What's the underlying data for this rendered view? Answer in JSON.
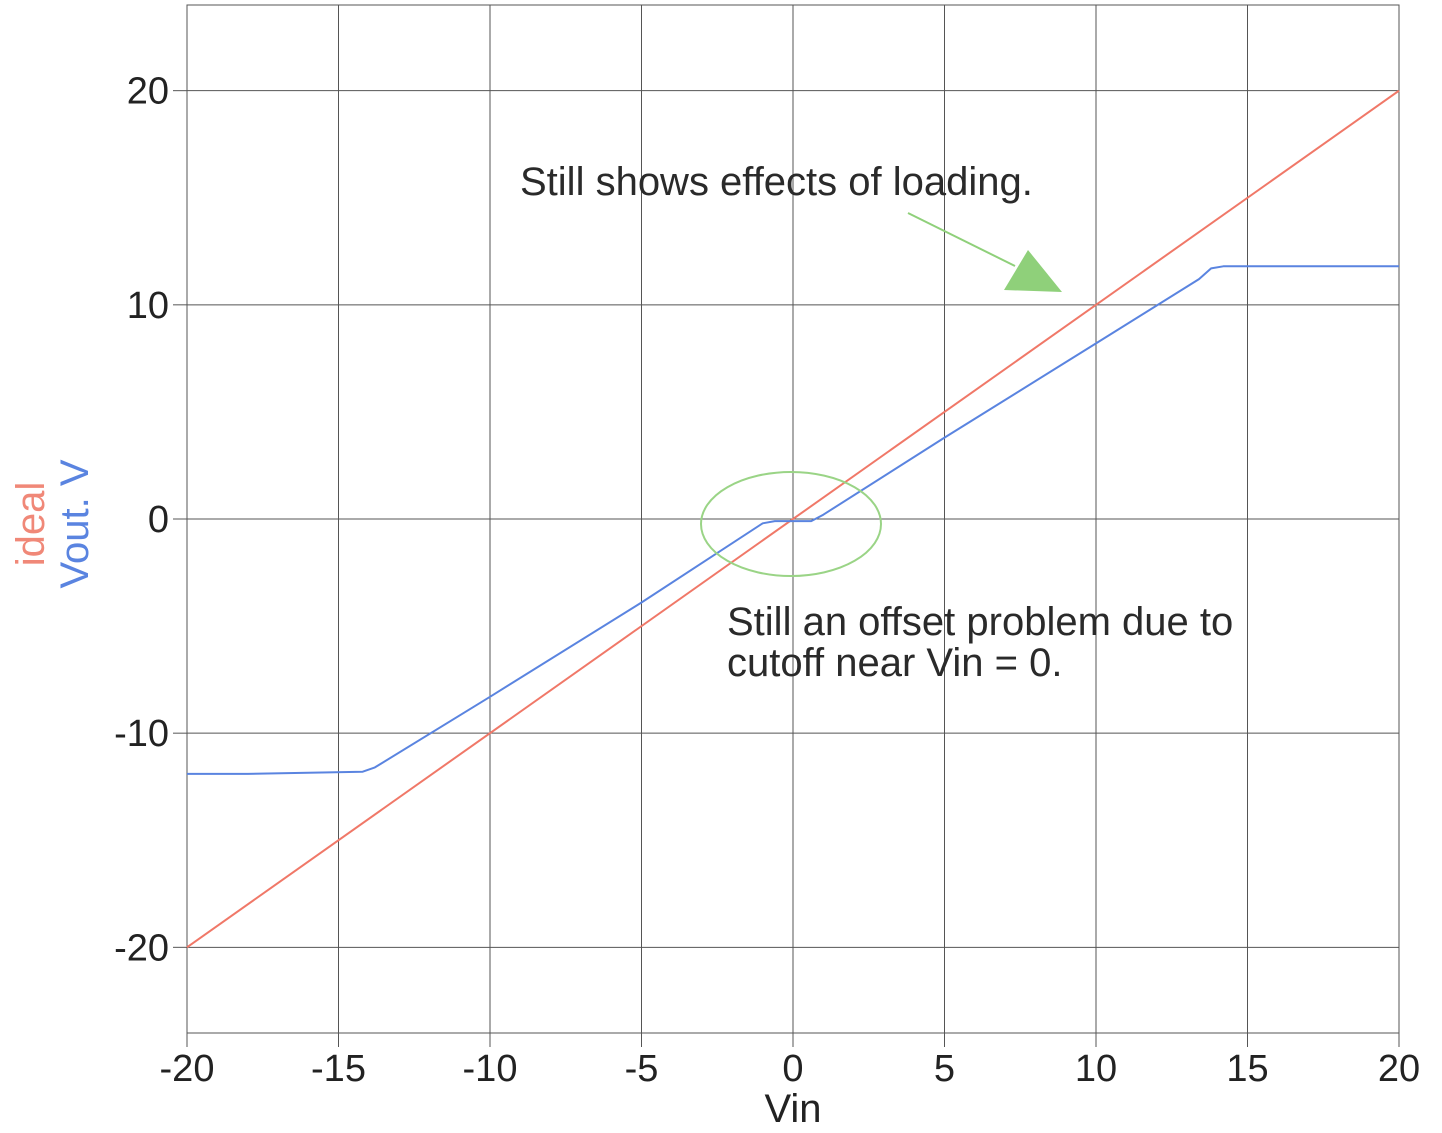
{
  "chart_data": {
    "type": "line",
    "xlabel": "Vin",
    "ylabels": [
      {
        "text": "ideal",
        "color": "#f08878"
      },
      {
        "text": "Vout. V",
        "color": "#5a84e0"
      }
    ],
    "xlim": [
      -20,
      20
    ],
    "ylim": [
      -24,
      24
    ],
    "x_ticks": [
      -20,
      -15,
      -10,
      -5,
      0,
      5,
      10,
      15,
      20
    ],
    "x_tick_labels": [
      "-20",
      "-15",
      "-10",
      "-5",
      "0",
      "5",
      "10",
      "15",
      "20"
    ],
    "y_ticks": [
      -20,
      -10,
      0,
      10,
      20
    ],
    "y_tick_labels": [
      "-20",
      "-10",
      "0",
      "10",
      "20"
    ],
    "grid": true,
    "series": [
      {
        "name": "ideal",
        "color": "#f07868",
        "x": [
          -20,
          20
        ],
        "y": [
          -20,
          20
        ]
      },
      {
        "name": "Vout. V",
        "color": "#5a84e0",
        "x": [
          -20,
          -18,
          -14.2,
          -13.8,
          -10,
          -5,
          -1,
          -0.6,
          0.6,
          1,
          5,
          10,
          13.4,
          13.8,
          14.2,
          16,
          20
        ],
        "y": [
          -11.9,
          -11.9,
          -11.8,
          -11.6,
          -8.3,
          -3.9,
          -0.2,
          -0.1,
          -0.1,
          0.2,
          3.8,
          8.2,
          11.2,
          11.7,
          11.8,
          11.8,
          11.8
        ]
      }
    ],
    "annotations": [
      {
        "id": "loading",
        "text": "Still shows effects of loading."
      },
      {
        "id": "offset",
        "lines": [
          "Still an offset problem due to",
          "cutoff near Vin = 0."
        ]
      }
    ],
    "annotation_colors": {
      "arrow": "#8fd07a",
      "ellipse": "#9ad486"
    }
  }
}
